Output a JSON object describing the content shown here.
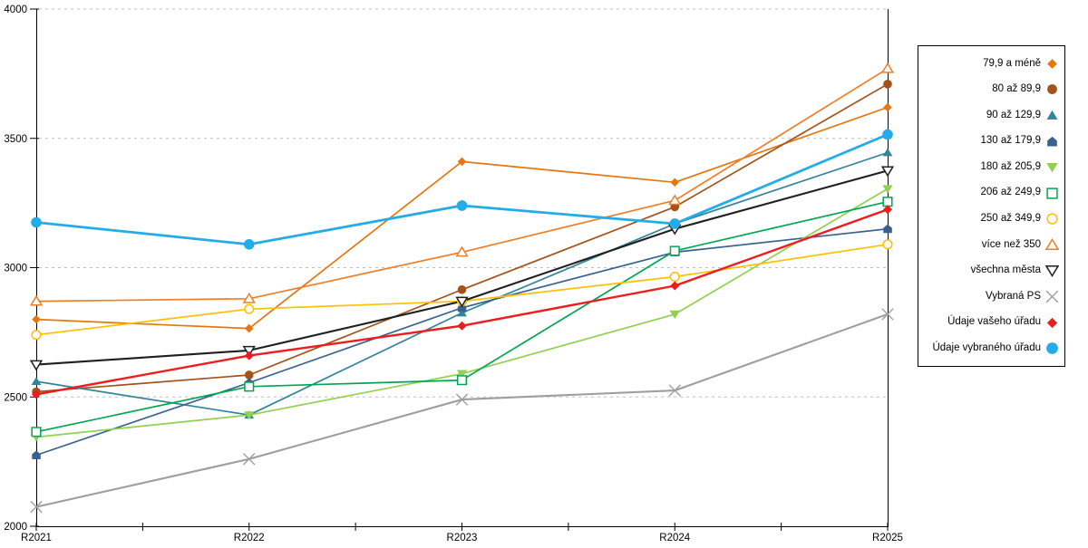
{
  "chart_data": {
    "type": "line",
    "title": "",
    "xlabel": "",
    "ylabel": "",
    "x_labels": [
      "R2021",
      "R2022",
      "R2023",
      "R2024",
      "R2025"
    ],
    "y_ticks": [
      2000,
      2500,
      3000,
      3500,
      4000
    ],
    "ylim": [
      2000,
      4000
    ],
    "grid": "horizontal-dashed",
    "legend_position": "right",
    "series": [
      {
        "name": "79,9 a méně",
        "color": "#E8760F",
        "marker": "diamond",
        "open": false,
        "line_width": 1.7,
        "marker_size": 4.8,
        "values": [
          2800,
          2765,
          3410,
          3330,
          3620
        ]
      },
      {
        "name": "80 až 89,9",
        "color": "#A4511A",
        "marker": "circle",
        "open": false,
        "line_width": 1.7,
        "marker_size": 4.8,
        "values": [
          2520,
          2585,
          2915,
          3235,
          3710
        ]
      },
      {
        "name": "90 až 129,9",
        "color": "#31859B",
        "marker": "triangle-up",
        "open": false,
        "line_width": 1.7,
        "marker_size": 5.0,
        "values": [
          2560,
          2430,
          2825,
          3170,
          3445
        ]
      },
      {
        "name": "130 až 179,9",
        "color": "#38618F",
        "marker": "pentagon",
        "open": false,
        "line_width": 1.7,
        "marker_size": 5.0,
        "values": [
          2275,
          2555,
          2845,
          3060,
          3150
        ]
      },
      {
        "name": "180 až 205,9",
        "color": "#92D050",
        "marker": "triangle-down",
        "open": false,
        "line_width": 1.7,
        "marker_size": 5.2,
        "values": [
          2345,
          2430,
          2590,
          2820,
          3305
        ]
      },
      {
        "name": "206 až 249,9",
        "color": "#00A651",
        "marker": "square",
        "open": true,
        "line_width": 1.7,
        "marker_size": 4.8,
        "values": [
          2365,
          2540,
          2565,
          3065,
          3255
        ]
      },
      {
        "name": "250 až 349,9",
        "color": "#FFC000",
        "marker": "circle",
        "open": true,
        "line_width": 1.7,
        "marker_size": 4.8,
        "values": [
          2740,
          2840,
          2870,
          2965,
          3090
        ]
      },
      {
        "name": "více než 350",
        "color": "#F07E26",
        "marker": "triangle-up",
        "open": true,
        "line_width": 1.7,
        "marker_size": 5.4,
        "values": [
          2870,
          2880,
          3060,
          3260,
          3770
        ]
      },
      {
        "name": "všechna města",
        "color": "#1F1F1F",
        "marker": "triangle-down",
        "open": true,
        "line_width": 2.1,
        "marker_size": 5.4,
        "values": [
          2625,
          2680,
          2870,
          3150,
          3375
        ]
      },
      {
        "name": "Vybraná PS",
        "color": "#9E9E9E",
        "marker": "x",
        "open": true,
        "line_width": 2.1,
        "marker_size": 6.2,
        "values": [
          2075,
          2260,
          2490,
          2525,
          2820
        ]
      },
      {
        "name": "Údaje vašeho úřadu",
        "color": "#EE1C1C",
        "marker": "diamond",
        "open": false,
        "line_width": 2.4,
        "marker_size": 5.0,
        "values": [
          2510,
          2660,
          2775,
          2930,
          3225
        ]
      },
      {
        "name": "Údaje vybraného úřadu",
        "color": "#23ACE8",
        "marker": "circle",
        "open": false,
        "line_width": 2.8,
        "marker_size": 5.8,
        "values": [
          3175,
          3090,
          3240,
          3170,
          3515
        ]
      }
    ],
    "colors": {
      "axis": "#000000",
      "gridline": "#BFBFBF",
      "tick_label": "#000000"
    }
  }
}
